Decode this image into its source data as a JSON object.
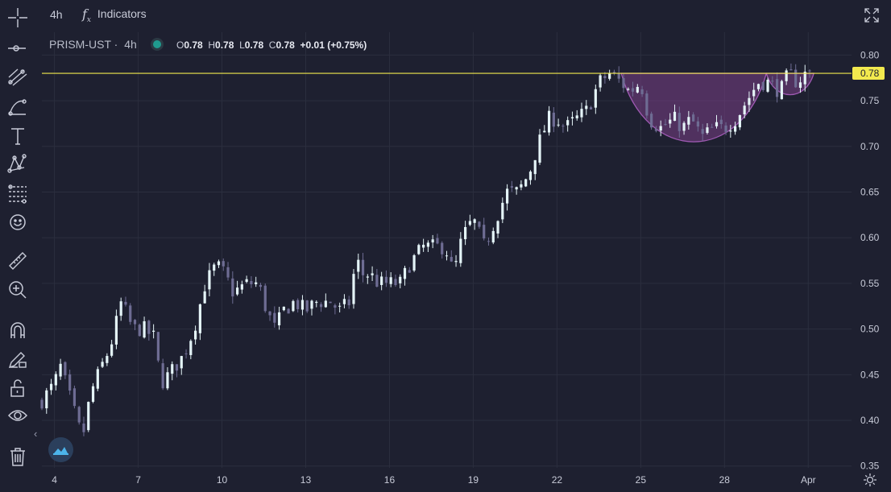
{
  "topbar": {
    "interval": "4h",
    "indicators_label": "Indicators"
  },
  "legend": {
    "symbol": "PRISM-UST",
    "separator": "·",
    "timeframe": "4h",
    "open_label": "O",
    "open": "0.78",
    "high_label": "H",
    "high": "0.78",
    "low_label": "L",
    "low": "0.78",
    "close_label": "C",
    "close": "0.78",
    "change": "+0.01 (+0.75%)"
  },
  "price_line": {
    "value": 0.78,
    "label": "0.78",
    "color": "#f2e94e"
  },
  "colors": {
    "bull": "#e4f4f7",
    "bear": "#6e6c93",
    "pattern": "#7a3f86"
  },
  "chart_data": {
    "type": "candlestick",
    "y_ticks": [
      "0.80",
      "0.75",
      "0.70",
      "0.65",
      "0.60",
      "0.55",
      "0.50",
      "0.45",
      "0.40",
      "0.35"
    ],
    "ylim": [
      0.348,
      0.825
    ],
    "x_ticks": [
      "4",
      "7",
      "10",
      "13",
      "16",
      "19",
      "22",
      "25",
      "28",
      "Apr"
    ],
    "xlim": [
      3.55,
      32.55
    ],
    "x_tick_values": [
      4,
      7,
      10,
      13,
      16,
      19,
      22,
      25,
      28,
      31
    ],
    "grid": true,
    "close_path": [
      [
        3.5,
        0.42
      ],
      [
        4.0,
        0.44
      ],
      [
        4.2,
        0.46
      ],
      [
        4.5,
        0.43
      ],
      [
        4.8,
        0.4
      ],
      [
        5.0,
        0.38
      ],
      [
        5.3,
        0.43
      ],
      [
        5.7,
        0.46
      ],
      [
        6.0,
        0.48
      ],
      [
        6.4,
        0.53
      ],
      [
        6.8,
        0.5
      ],
      [
        7.2,
        0.5
      ],
      [
        7.6,
        0.49
      ],
      [
        7.8,
        0.44
      ],
      [
        8.1,
        0.45
      ],
      [
        8.6,
        0.47
      ],
      [
        9.0,
        0.5
      ],
      [
        9.4,
        0.55
      ],
      [
        9.8,
        0.57
      ],
      [
        10.1,
        0.56
      ],
      [
        10.4,
        0.54
      ],
      [
        10.9,
        0.55
      ],
      [
        11.3,
        0.55
      ],
      [
        11.6,
        0.52
      ],
      [
        11.9,
        0.5
      ],
      [
        12.2,
        0.52
      ],
      [
        12.6,
        0.53
      ],
      [
        13.0,
        0.52
      ],
      [
        13.4,
        0.53
      ],
      [
        13.9,
        0.53
      ],
      [
        14.2,
        0.52
      ],
      [
        14.6,
        0.53
      ],
      [
        14.8,
        0.58
      ],
      [
        15.0,
        0.56
      ],
      [
        15.3,
        0.56
      ],
      [
        15.6,
        0.55
      ],
      [
        16.0,
        0.55
      ],
      [
        16.4,
        0.55
      ],
      [
        16.7,
        0.57
      ],
      [
        17.2,
        0.59
      ],
      [
        17.6,
        0.59
      ],
      [
        18.0,
        0.59
      ],
      [
        18.3,
        0.56
      ],
      [
        18.6,
        0.6
      ],
      [
        19.0,
        0.62
      ],
      [
        19.4,
        0.59
      ],
      [
        19.8,
        0.62
      ],
      [
        20.2,
        0.65
      ],
      [
        20.6,
        0.65
      ],
      [
        21.0,
        0.67
      ],
      [
        21.3,
        0.7
      ],
      [
        21.7,
        0.73
      ],
      [
        22.0,
        0.73
      ],
      [
        22.3,
        0.72
      ],
      [
        22.7,
        0.73
      ],
      [
        23.1,
        0.74
      ],
      [
        23.5,
        0.77
      ],
      [
        23.9,
        0.78
      ],
      [
        24.3,
        0.77
      ],
      [
        24.6,
        0.76
      ],
      [
        25.0,
        0.77
      ],
      [
        25.3,
        0.73
      ],
      [
        25.7,
        0.72
      ],
      [
        26.2,
        0.73
      ],
      [
        26.5,
        0.72
      ],
      [
        26.8,
        0.73
      ],
      [
        27.2,
        0.71
      ],
      [
        27.6,
        0.72
      ],
      [
        28.0,
        0.72
      ],
      [
        28.4,
        0.73
      ],
      [
        28.8,
        0.75
      ],
      [
        29.2,
        0.77
      ],
      [
        29.6,
        0.77
      ],
      [
        30.0,
        0.76
      ],
      [
        30.3,
        0.78
      ],
      [
        30.6,
        0.77
      ],
      [
        30.9,
        0.78
      ],
      [
        31.2,
        0.78
      ]
    ],
    "pattern_cup": {
      "x_start": 24.3,
      "x_end": 29.5,
      "top": 0.78,
      "bottom": 0.7
    },
    "pattern_handle": {
      "x_start": 29.5,
      "x_end": 31.2,
      "top": 0.78,
      "bottom": 0.755
    }
  }
}
